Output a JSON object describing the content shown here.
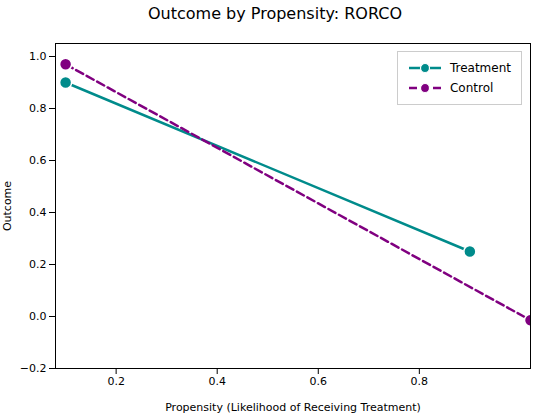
{
  "chart_data": {
    "type": "line",
    "title": "Outcome by Propensity: RORCO",
    "x_label": "Propensity (Likelihood of Receiving Treatment)",
    "y_label": "Outcome",
    "xlim": [
      0.08,
      1.02
    ],
    "ylim": [
      -0.2,
      1.05
    ],
    "xticks": [
      0.2,
      0.4,
      0.6,
      0.8
    ],
    "yticks": [
      -0.2,
      0,
      0.2,
      0.4,
      0.6,
      0.8,
      1.0
    ],
    "legend": "upper right",
    "series": [
      {
        "name": "Treatment",
        "color": "#008B8B",
        "line_style": "solid",
        "marker": "circle",
        "x": [
          0.1,
          0.9
        ],
        "values": [
          0.9,
          0.25
        ]
      },
      {
        "name": "Control",
        "color": "#800080",
        "line_style": "dashed",
        "marker": "circle",
        "x": [
          0.1,
          1.02
        ],
        "values": [
          0.97,
          -0.0144
        ]
      }
    ]
  }
}
